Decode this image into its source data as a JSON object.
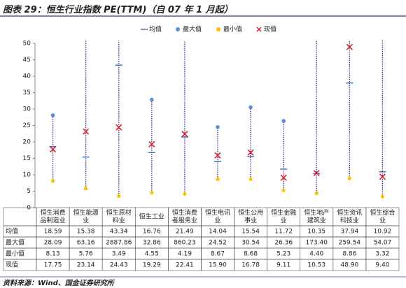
{
  "chart_data": {
    "type": "range-dot",
    "title": "图表 29：恒生行业指数 PE(TTM)（自 07 年 1 月起）",
    "source": "资料来源：Wind、国金证券研究所",
    "categories": [
      [
        "恒生消费",
        "品制造业"
      ],
      [
        "恒生能源",
        "业"
      ],
      [
        "恒生原材",
        "料业"
      ],
      [
        "恒生工业"
      ],
      [
        "恒生消费",
        "者服务业"
      ],
      [
        "恒生电讯",
        "业"
      ],
      [
        "恒生公用",
        "事业"
      ],
      [
        "恒生金融",
        "业"
      ],
      [
        "恒生地产",
        "建筑业"
      ],
      [
        "恒生资讯",
        "科技业"
      ],
      [
        "恒生综合",
        "业"
      ]
    ],
    "series": [
      {
        "name": "均值",
        "color": "#4472c4",
        "values": [
          18.59,
          15.38,
          43.34,
          16.76,
          21.49,
          14.04,
          15.54,
          11.72,
          10.35,
          37.94,
          10.92
        ],
        "value_labels": [
          "18.59",
          "15.38",
          "43.34",
          "16.76",
          "21.49",
          "14.04",
          "15.54",
          "11.72",
          "10.35",
          "37.94",
          "10.92"
        ]
      },
      {
        "name": "最大值",
        "color": "#5b8fd9",
        "values": [
          28.09,
          63.16,
          2887.86,
          32.86,
          860.23,
          24.52,
          30.54,
          26.36,
          173.4,
          259.54,
          54.07
        ],
        "value_labels": [
          "28.09",
          "63.16",
          "2887.86",
          "32.86",
          "860.23",
          "24.52",
          "30.54",
          "26.36",
          "173.40",
          "259.54",
          "54.07"
        ]
      },
      {
        "name": "最小值",
        "color": "#ffc000",
        "values": [
          8.13,
          5.76,
          3.49,
          4.55,
          4.19,
          8.67,
          8.68,
          5.23,
          4.4,
          8.86,
          3.32
        ],
        "value_labels": [
          "8.13",
          "5.76",
          "3.49",
          "4.55",
          "4.19",
          "8.67",
          "8.68",
          "5.23",
          "4.40",
          "8.86",
          "3.32"
        ]
      },
      {
        "name": "现值",
        "color": "#d9232d",
        "values": [
          17.75,
          23.14,
          24.43,
          19.29,
          22.41,
          15.9,
          16.78,
          9.11,
          10.53,
          48.9,
          9.4
        ],
        "value_labels": [
          "17.75",
          "23.14",
          "24.43",
          "19.29",
          "22.41",
          "15.90",
          "16.78",
          "9.11",
          "10.53",
          "48.90",
          "9.40"
        ]
      }
    ],
    "range_color": "#3b2a8f",
    "ylim": [
      0,
      50
    ],
    "yticks": [
      0,
      5,
      10,
      15,
      20,
      25,
      30,
      35,
      40,
      45,
      50
    ]
  }
}
